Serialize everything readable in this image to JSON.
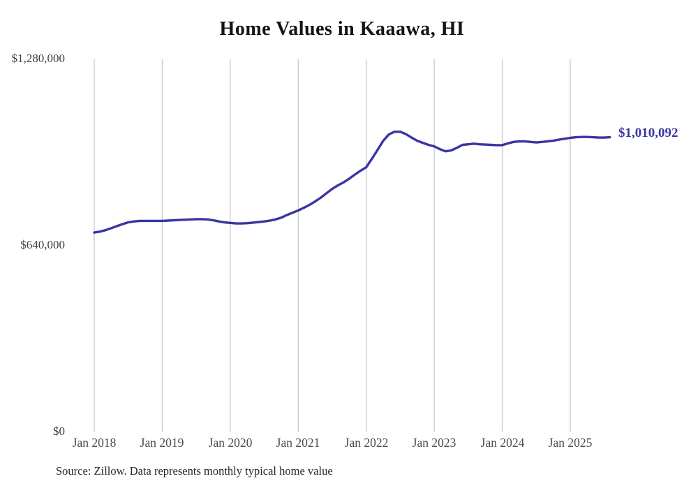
{
  "chart": {
    "title": "Home Values in Kaaawa, HI",
    "source": "Source: Zillow. Data represents monthly typical home value",
    "end_label": "$1,010,092",
    "colors": {
      "line": "#3a34a3",
      "gridline": "#c9c9c9",
      "axis_text": "#3f3f3f",
      "title_text": "#131313",
      "source_text": "#262626"
    }
  },
  "chart_data": {
    "type": "line",
    "title": "Home Values in Kaaawa, HI",
    "x_unit": "month",
    "x_start": "2018-01",
    "x_end": "2025-08",
    "x_step_months": 1,
    "x_tick_labels": [
      "Jan 2018",
      "Jan 2019",
      "Jan 2020",
      "Jan 2021",
      "Jan 2022",
      "Jan 2023",
      "Jan 2024",
      "Jan 2025"
    ],
    "x_tick_month_indices": [
      0,
      12,
      24,
      36,
      48,
      60,
      72,
      84
    ],
    "y_ticks": [
      {
        "label": "$0",
        "value": 0
      },
      {
        "label": "$640,000",
        "value": 640000
      },
      {
        "label": "$1,280,000",
        "value": 1280000
      }
    ],
    "ylim": [
      0,
      1280000
    ],
    "grid": "vertical-only",
    "legend": "none",
    "end_label": "$1,010,092",
    "final_value": 1010092,
    "series": [
      {
        "name": "typical-home-value",
        "values": [
          683000,
          686000,
          691000,
          698000,
          705000,
          712000,
          718000,
          721000,
          723000,
          723000,
          723000,
          723000,
          723000,
          724000,
          725000,
          726000,
          727000,
          728000,
          729000,
          729000,
          728000,
          725000,
          721000,
          718000,
          716000,
          714000,
          714000,
          715000,
          717000,
          719000,
          721000,
          724000,
          728000,
          734000,
          743000,
          751000,
          759000,
          768000,
          778000,
          790000,
          803000,
          818000,
          833000,
          845000,
          855000,
          868000,
          882000,
          895000,
          907000,
          936000,
          967000,
          998000,
          1020000,
          1029000,
          1029000,
          1021000,
          1009000,
          998000,
          991000,
          984000,
          979000,
          969000,
          962000,
          965000,
          974000,
          984000,
          986000,
          988000,
          986000,
          985000,
          984000,
          983000,
          983000,
          989000,
          994000,
          996000,
          996000,
          994000,
          992000,
          994000,
          996000,
          998000,
          1002000,
          1005000,
          1008000,
          1010000,
          1011000,
          1011000,
          1010000,
          1009000,
          1009000,
          1010092
        ]
      }
    ]
  }
}
